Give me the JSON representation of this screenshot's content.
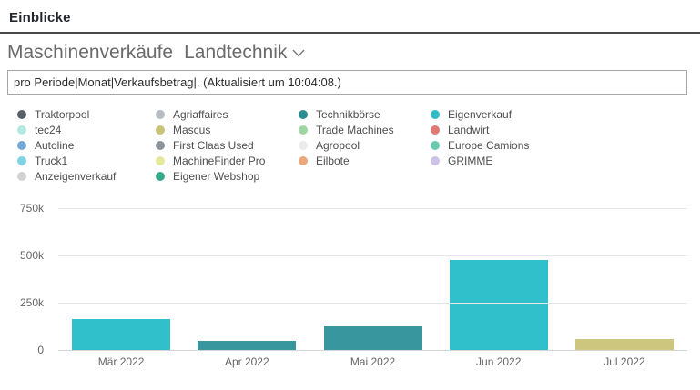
{
  "header": {
    "title": "Einblicke"
  },
  "report": {
    "title": "Maschinenverkäufe",
    "subtitle": "Landtechnik",
    "chevron_icon": "chevron-down",
    "query_value": "pro Periode|Monat|Verkaufsbetrag|. (Aktualisiert um 10:04:08.)"
  },
  "legend": {
    "columns": [
      [
        {
          "label": "Traktorpool",
          "color": "#595f66"
        },
        {
          "label": "tec24",
          "color": "#b5e8df"
        },
        {
          "label": "Autoline",
          "color": "#74a7d7"
        },
        {
          "label": "Truck1",
          "color": "#7fd3e3"
        },
        {
          "label": "Anzeigenverkauf",
          "color": "#d2d2d2"
        }
      ],
      [
        {
          "label": "Agriaffaires",
          "color": "#b8bdc4"
        },
        {
          "label": "Mascus",
          "color": "#c8c378"
        },
        {
          "label": "First Claas Used",
          "color": "#8e949b"
        },
        {
          "label": "MachineFinder Pro",
          "color": "#e5e99d"
        },
        {
          "label": "Eigener Webshop",
          "color": "#38a88b"
        }
      ],
      [
        {
          "label": "Technikbörse",
          "color": "#2d8c90"
        },
        {
          "label": "Trade Machines",
          "color": "#9fd5a1"
        },
        {
          "label": "Agropool",
          "color": "#ececec"
        },
        {
          "label": "Eilbote",
          "color": "#e9a97c"
        }
      ],
      [
        {
          "label": "Eigenverkauf",
          "color": "#2fbac6"
        },
        {
          "label": "Landwirt",
          "color": "#e17a75"
        },
        {
          "label": "Europe Camions",
          "color": "#68cbaf"
        },
        {
          "label": "GRIMME",
          "color": "#cfc2e9"
        }
      ]
    ]
  },
  "chart_data": {
    "type": "bar",
    "title": "Maschinenverkäufe Landtechnik — pro Periode (Monat) Verkaufsbetrag",
    "categories": [
      "Mär 2022",
      "Apr 2022",
      "Mai 2022",
      "Jun 2022",
      "Jul 2022"
    ],
    "values": [
      165000,
      50000,
      127000,
      476000,
      57000
    ],
    "bar_colors": [
      "#2fc0cc",
      "#38969e",
      "#38969e",
      "#2fc0cc",
      "#cdc67e"
    ],
    "xlabel": "",
    "ylabel": "",
    "ylim": [
      0,
      750000
    ],
    "yticks": [
      {
        "label": "750k",
        "value": 750000
      },
      {
        "label": "500k",
        "value": 500000
      },
      {
        "label": "250k",
        "value": 250000
      },
      {
        "label": "0",
        "value": 0
      }
    ],
    "grid": true,
    "legend_position": "top"
  },
  "colors": {
    "header_rule": "#4a4a4a",
    "gridline": "#e8e8e8",
    "axis_line": "#d6d6d6"
  }
}
